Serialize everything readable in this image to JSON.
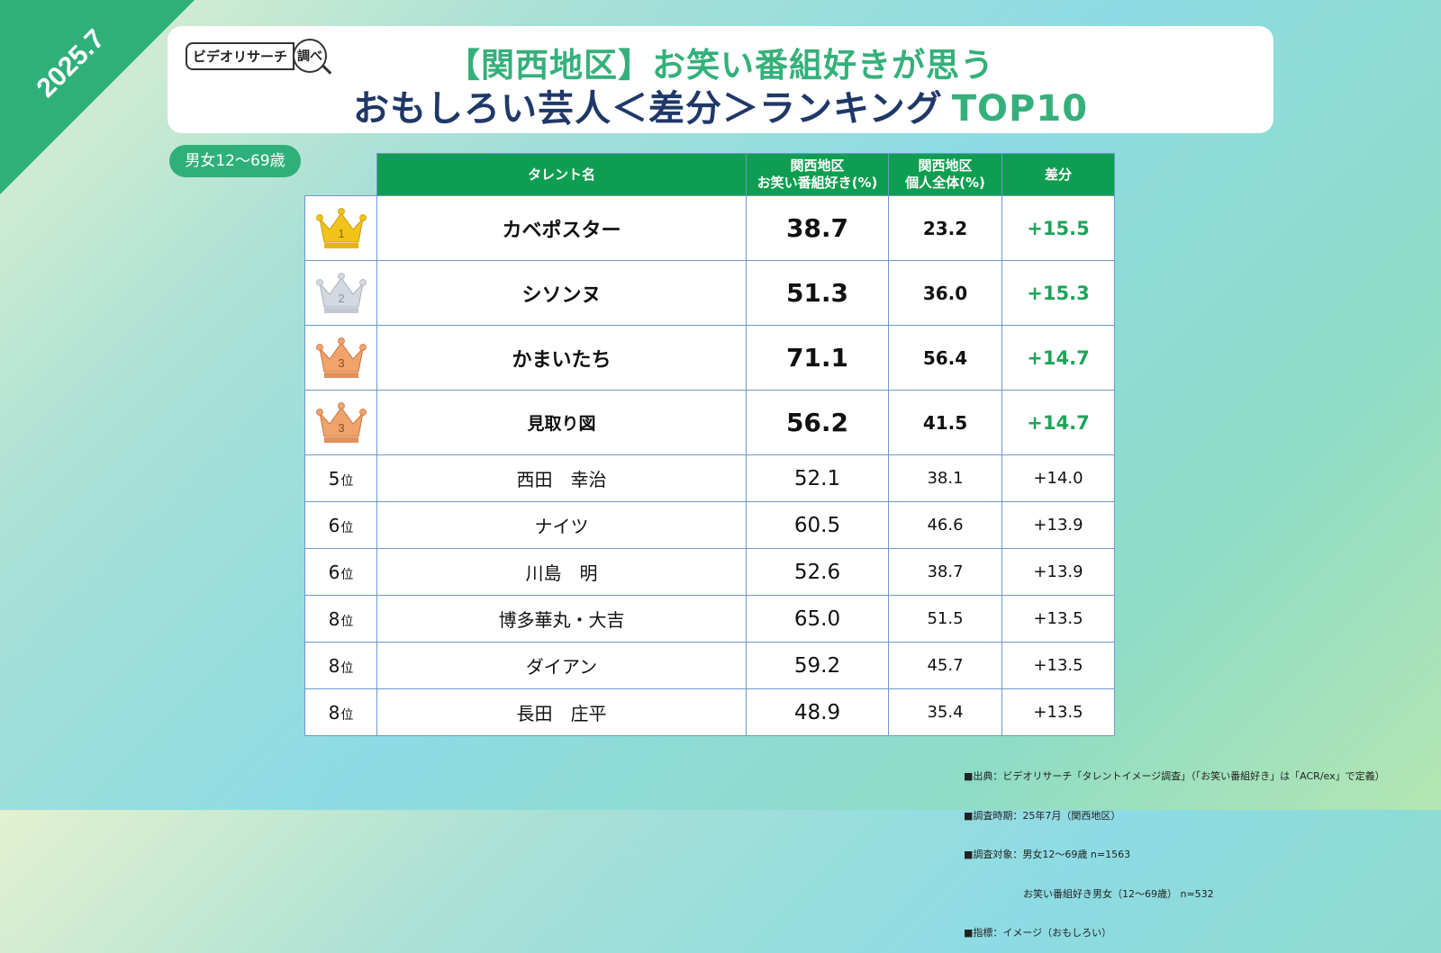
{
  "corner_date": "2025.7",
  "logo": {
    "text": "ビデオリサーチ",
    "mark": "調べ"
  },
  "title": {
    "line1": "【関西地区】お笑い番組好きが思う",
    "line2": "おもしろい芸人＜差分＞ランキング",
    "line2_tail": "TOP10"
  },
  "segment_label": "男女12～69歳",
  "table": {
    "headers": {
      "name": "タレント名",
      "fan_line1": "関西地区",
      "fan_line2": "お笑い番組好き(%)",
      "all_line1": "関西地区",
      "all_line2": "個人全体(%)",
      "diff": "差分"
    },
    "rows": [
      {
        "rank": "1",
        "rank_label": "",
        "crown": "gold",
        "name": "カベポスター",
        "fan": "38.7",
        "all": "23.2",
        "diff": "+15.5"
      },
      {
        "rank": "2",
        "rank_label": "",
        "crown": "silver",
        "name": "シソンヌ",
        "fan": "51.3",
        "all": "36.0",
        "diff": "+15.3"
      },
      {
        "rank": "3",
        "rank_label": "",
        "crown": "bronze",
        "name": "かまいたち",
        "fan": "71.1",
        "all": "56.4",
        "diff": "+14.7"
      },
      {
        "rank": "3",
        "rank_label": "",
        "crown": "bronze",
        "name": "見取り図",
        "fan": "56.2",
        "all": "41.5",
        "diff": "+14.7"
      },
      {
        "rank": "5",
        "rank_label": "位",
        "crown": "",
        "name": "西田　幸治",
        "fan": "52.1",
        "all": "38.1",
        "diff": "+14.0"
      },
      {
        "rank": "6",
        "rank_label": "位",
        "crown": "",
        "name": "ナイツ",
        "fan": "60.5",
        "all": "46.6",
        "diff": "+13.9"
      },
      {
        "rank": "6",
        "rank_label": "位",
        "crown": "",
        "name": "川島　明",
        "fan": "52.6",
        "all": "38.7",
        "diff": "+13.9"
      },
      {
        "rank": "8",
        "rank_label": "位",
        "crown": "",
        "name": "博多華丸・大吉",
        "fan": "65.0",
        "all": "51.5",
        "diff": "+13.5"
      },
      {
        "rank": "8",
        "rank_label": "位",
        "crown": "",
        "name": "ダイアン",
        "fan": "59.2",
        "all": "45.7",
        "diff": "+13.5"
      },
      {
        "rank": "8",
        "rank_label": "位",
        "crown": "",
        "name": "長田　庄平",
        "fan": "48.9",
        "all": "35.4",
        "diff": "+13.5"
      }
    ]
  },
  "notes": [
    "■出典：ビデオリサーチ「タレントイメージ調査」（「お笑い番組好き」は「ACR/ex」で定義）",
    "■調査時期：25年7月（関西地区）",
    "■調査対象：男女12～69歳 n=1563",
    "　　　　　　お笑い番組好き男女（12～69歳） n=532",
    "■指標：イメージ（おもしろい）"
  ],
  "colors": {
    "accent_green": "#2fb07a",
    "header_green": "#0f9e51",
    "title_navy": "#1f3868",
    "diff_green": "#1fa35a",
    "gold": "#f2c31a",
    "silver": "#d3d8e1",
    "bronze": "#f0a36b"
  },
  "chart_data": {
    "type": "table",
    "title": "【関西地区】お笑い番組好きが思う おもしろい芸人＜差分＞ランキング TOP10",
    "columns": [
      "タレント名",
      "関西地区 お笑い番組好き(%)",
      "関西地区 個人全体(%)",
      "差分"
    ],
    "categories": [
      "カベポスター",
      "シソンヌ",
      "かまいたち",
      "見取り図",
      "西田　幸治",
      "ナイツ",
      "川島　明",
      "博多華丸・大吉",
      "ダイアン",
      "長田　庄平"
    ],
    "series": [
      {
        "name": "関西地区 お笑い番組好き(%)",
        "values": [
          38.7,
          51.3,
          71.1,
          56.2,
          52.1,
          60.5,
          52.6,
          65.0,
          59.2,
          48.9
        ]
      },
      {
        "name": "関西地区 個人全体(%)",
        "values": [
          23.2,
          36.0,
          56.4,
          41.5,
          38.1,
          46.6,
          38.7,
          51.5,
          45.7,
          35.4
        ]
      },
      {
        "name": "差分",
        "values": [
          15.5,
          15.3,
          14.7,
          14.7,
          14.0,
          13.9,
          13.9,
          13.5,
          13.5,
          13.5
        ]
      }
    ],
    "ranks": [
      1,
      2,
      3,
      3,
      5,
      6,
      6,
      8,
      8,
      8
    ]
  }
}
